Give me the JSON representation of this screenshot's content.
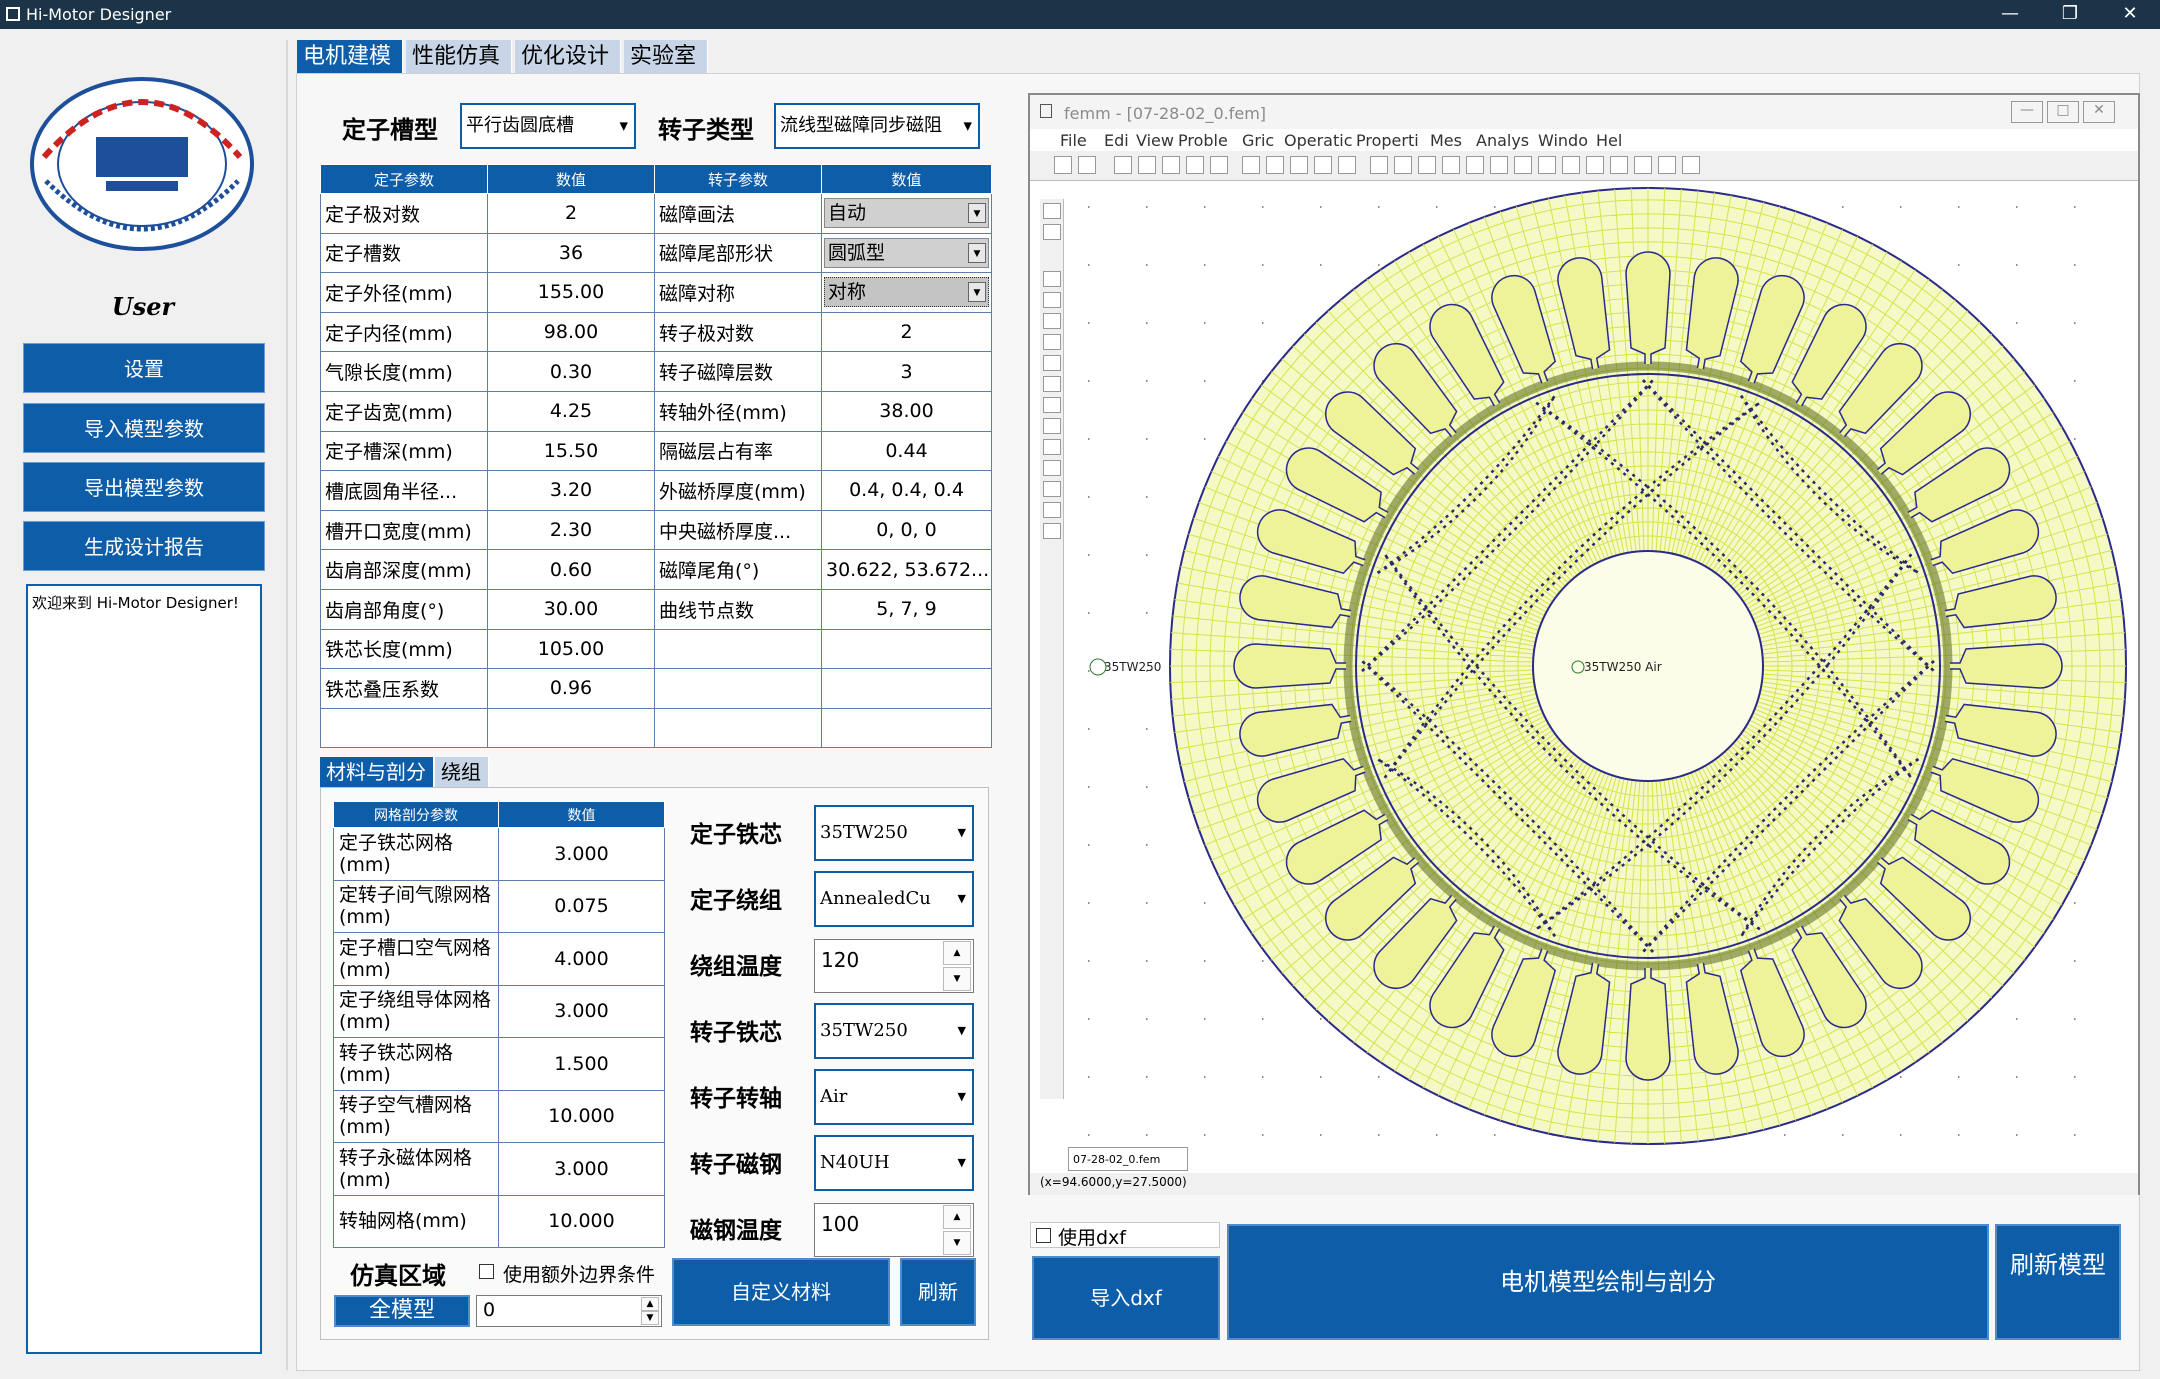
{
  "window": {
    "title": "Hi-Motor Designer",
    "minimize": "—",
    "maximize": "❐",
    "close": "✕"
  },
  "sidebar": {
    "user_label": "User",
    "buttons": [
      "设置",
      "导入模型参数",
      "导出模型参数",
      "生成设计报告"
    ],
    "message": "欢迎来到 Hi-Motor Designer!"
  },
  "tabs": [
    "电机建模",
    "性能仿真",
    "优化设计",
    "实验室"
  ],
  "selectors": {
    "stator_slot_label": "定子槽型",
    "stator_slot_value": "平行齿圆底槽",
    "rotor_type_label": "转子类型",
    "rotor_type_value": "流线型磁障同步磁阻"
  },
  "param_table": {
    "headers": [
      "定子参数",
      "数值",
      "转子参数",
      "数值"
    ],
    "rows": [
      [
        "定子极对数",
        "2",
        "磁障画法",
        "自动"
      ],
      [
        "定子槽数",
        "36",
        "磁障尾部形状",
        "圆弧型"
      ],
      [
        "定子外径(mm)",
        "155.00",
        "磁障对称",
        "对称"
      ],
      [
        "定子内径(mm)",
        "98.00",
        "转子极对数",
        "2"
      ],
      [
        "气隙长度(mm)",
        "0.30",
        "转子磁障层数",
        "3"
      ],
      [
        "定子齿宽(mm)",
        "4.25",
        "转轴外径(mm)",
        "38.00"
      ],
      [
        "定子槽深(mm)",
        "15.50",
        "隔磁层占有率",
        "0.44"
      ],
      [
        "槽底圆角半径...",
        "3.20",
        "外磁桥厚度(mm)",
        "0.4, 0.4, 0.4"
      ],
      [
        "槽开口宽度(mm)",
        "2.30",
        "中央磁桥厚度...",
        "0, 0, 0"
      ],
      [
        "齿肩部深度(mm)",
        "0.60",
        "磁障尾角(°)",
        "30.622, 53.672..."
      ],
      [
        "齿肩部角度(°)",
        "30.00",
        "曲线节点数",
        "5, 7, 9"
      ],
      [
        "铁芯长度(mm)",
        "105.00",
        "",
        ""
      ],
      [
        "铁芯叠压系数",
        "0.96",
        "",
        ""
      ],
      [
        "",
        "",
        "",
        ""
      ]
    ]
  },
  "subtabs": [
    "材料与剖分",
    "绕组"
  ],
  "mesh_table": {
    "headers": [
      "网格剖分参数",
      "数值"
    ],
    "rows": [
      [
        "定子铁芯网格(mm)",
        "3.000"
      ],
      [
        "定转子间气隙网格(mm)",
        "0.075"
      ],
      [
        "定子槽口空气网格(mm)",
        "4.000"
      ],
      [
        "定子绕组导体网格(mm)",
        "3.000"
      ],
      [
        "转子铁芯网格(mm)",
        "1.500"
      ],
      [
        "转子空气槽网格(mm)",
        "10.000"
      ],
      [
        "转子永磁体网格(mm)",
        "3.000"
      ],
      [
        "转轴网格(mm)",
        "10.000"
      ]
    ]
  },
  "materials": [
    {
      "label": "定子铁芯",
      "value": "35TW250",
      "kind": "combo"
    },
    {
      "label": "定子绕组",
      "value": "AnnealedCu",
      "kind": "combo"
    },
    {
      "label": "绕组温度",
      "value": "120",
      "kind": "spin"
    },
    {
      "label": "转子铁芯",
      "value": "35TW250",
      "kind": "combo"
    },
    {
      "label": "转子转轴",
      "value": "Air",
      "kind": "combo"
    },
    {
      "label": "转子磁钢",
      "value": "N40UH",
      "kind": "combo"
    },
    {
      "label": "磁钢温度",
      "value": "100",
      "kind": "spin"
    }
  ],
  "sim_region": {
    "label": "仿真区域",
    "extra_boundary": "使用额外边界条件",
    "full_model": "全模型",
    "value": "0"
  },
  "buttons": {
    "custom_material": "自定义材料",
    "refresh": "刷新",
    "use_dxf": "使用dxf",
    "import_dxf": "导入dxf",
    "draw_mesh": "电机模型绘制与剖分",
    "refresh_model": "刷新模型"
  },
  "femm": {
    "title": "femm - [07-28-02_0.fem]",
    "menu": [
      "File",
      "Edi",
      "View",
      "Proble",
      "Gric",
      "Operatic",
      "Properti",
      "Mes",
      "Analys",
      "Windo",
      "Hel"
    ],
    "doc_tab": "07-28-02_0.fem",
    "status": "(x=94.6000,y=27.5000)",
    "label_stator": "35TW250",
    "label_rotor": "35TW250 Air",
    "mesh_color": "#d6e34a",
    "stator_slots": 36
  }
}
